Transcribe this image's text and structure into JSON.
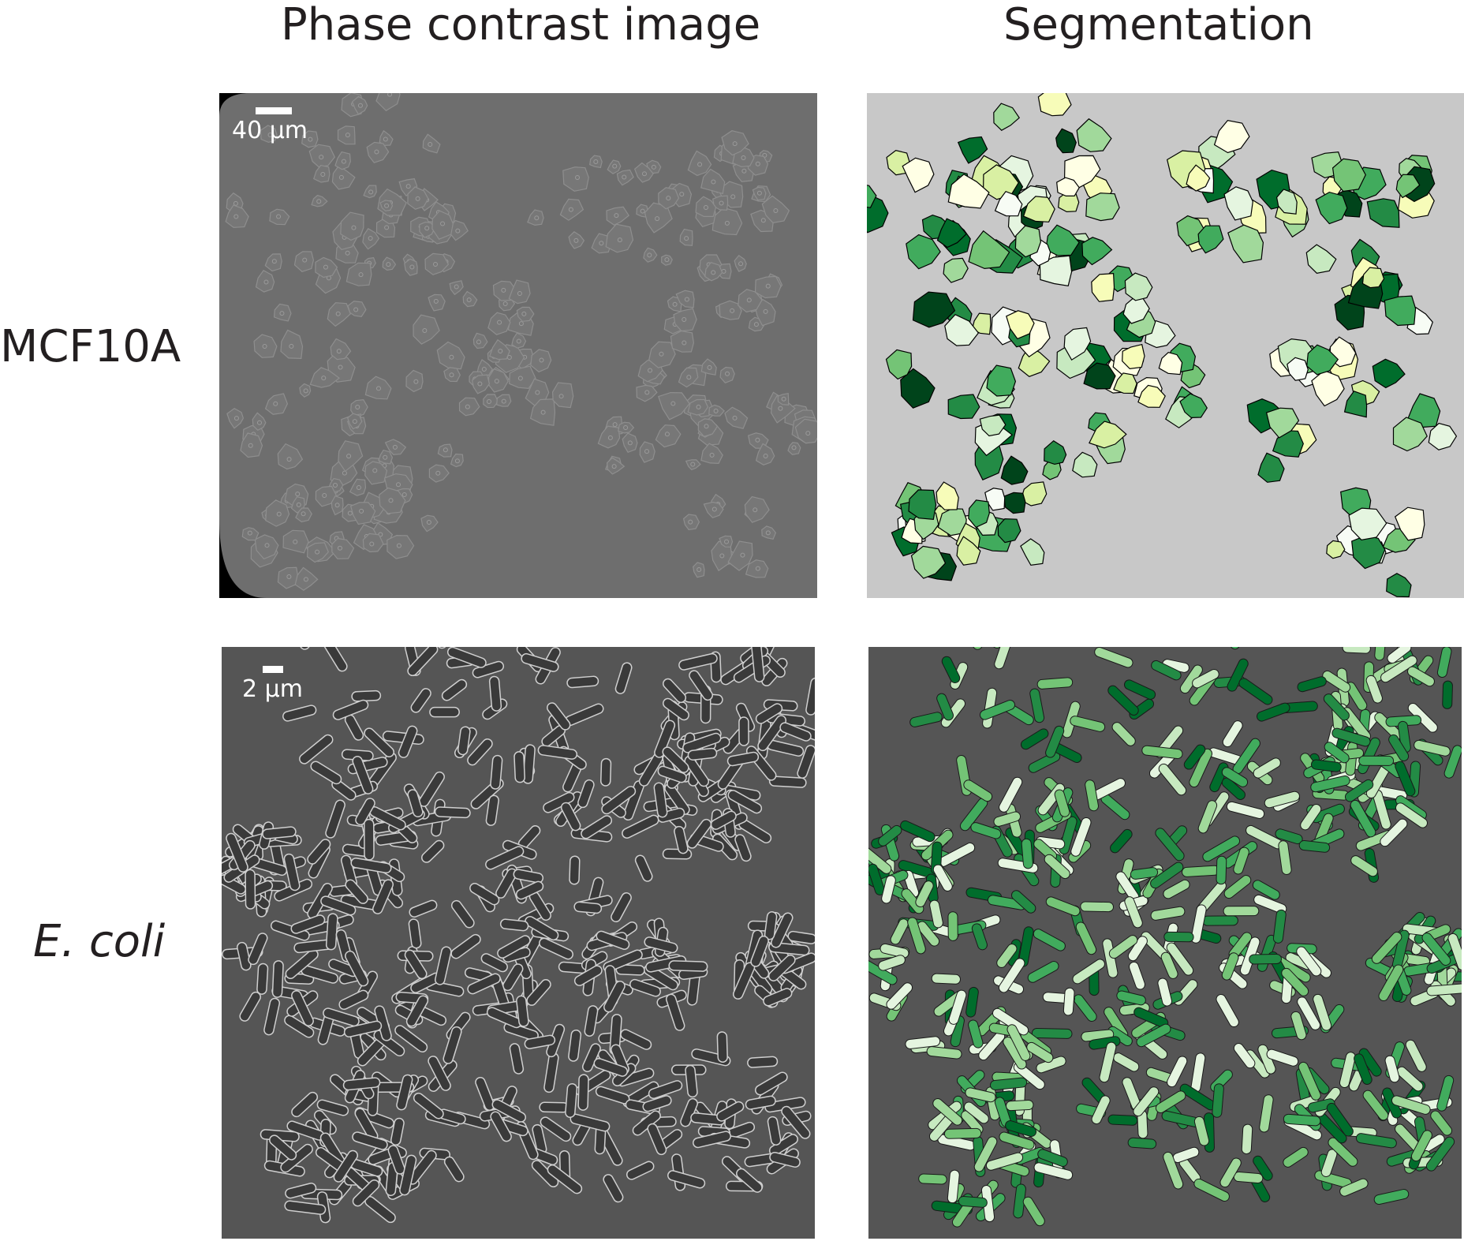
{
  "columns": {
    "phase": "Phase contrast image",
    "segmentation": "Segmentation"
  },
  "rows": {
    "mcf10a": "MCF10A",
    "ecoli": "E. coli"
  },
  "scale_bars": {
    "mcf10a": "40 µm",
    "ecoli": "2 µm"
  },
  "colors": {
    "phase_bg_mcf": "#6e6e6e",
    "phase_bg_ecoli": "#555555",
    "seg_bg_mcf": "#c8c8c8",
    "cell_palette": [
      "#f7fcf5",
      "#e5f5e0",
      "#c7e9c0",
      "#a1d99b",
      "#74c476",
      "#41ab5d",
      "#238b45",
      "#006d2c",
      "#00441b",
      "#ffffe5",
      "#f7fcb9",
      "#d9f0a3"
    ]
  }
}
